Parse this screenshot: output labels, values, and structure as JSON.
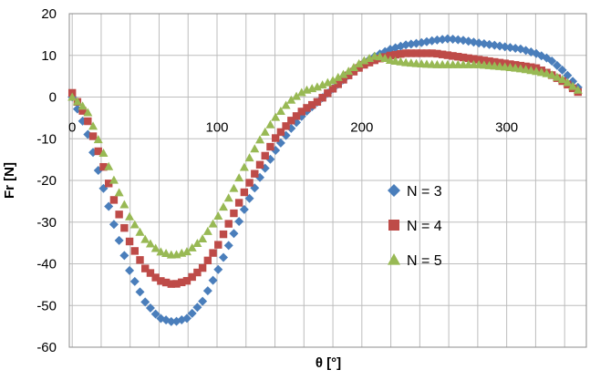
{
  "chart_data": {
    "type": "scatter",
    "title": "",
    "xlabel": "θ [°]",
    "ylabel": "Fr [N]",
    "xlim": [
      -2,
      355
    ],
    "ylim": [
      -60,
      20
    ],
    "x_ticks": [
      0,
      100,
      200,
      300
    ],
    "x_tick_labels": [
      "0",
      "100",
      "200",
      "300"
    ],
    "x_minor_step": 20,
    "y_ticks": [
      20,
      10,
      0,
      -10,
      -20,
      -30,
      -40,
      -50,
      -60
    ],
    "y_tick_labels": [
      "20",
      "10",
      "0",
      "-10",
      "-20",
      "-30",
      "-40",
      "-50",
      "-60"
    ],
    "grid": true,
    "legend_position": "center-right",
    "series": [
      {
        "name": "N = 3",
        "marker": "diamond",
        "color": "#4a7ebb",
        "x": [
          0,
          10,
          20,
          30,
          40,
          50,
          60,
          70,
          80,
          90,
          100,
          110,
          120,
          130,
          140,
          150,
          160,
          170,
          180,
          190,
          200,
          210,
          220,
          230,
          240,
          250,
          260,
          270,
          280,
          290,
          300,
          310,
          320,
          330,
          340,
          350
        ],
        "y": [
          0,
          -8,
          -20,
          -32,
          -42,
          -49,
          -53,
          -54,
          -53,
          -49,
          -42,
          -34,
          -26,
          -19,
          -13,
          -8,
          -4,
          -1,
          2,
          5,
          8,
          10,
          11.5,
          12.5,
          13,
          13.6,
          14,
          13.6,
          13,
          12.5,
          12,
          11.5,
          10.5,
          9,
          6,
          2
        ]
      },
      {
        "name": "N = 4",
        "marker": "square",
        "color": "#be4b48",
        "x": [
          0,
          10,
          20,
          30,
          40,
          50,
          60,
          70,
          80,
          90,
          100,
          110,
          120,
          130,
          140,
          150,
          160,
          170,
          180,
          190,
          200,
          210,
          220,
          230,
          240,
          250,
          260,
          270,
          280,
          290,
          300,
          310,
          320,
          330,
          340,
          350
        ],
        "y": [
          1,
          -5,
          -15,
          -26,
          -35,
          -41,
          -44,
          -45,
          -44,
          -41,
          -36,
          -29,
          -22,
          -16,
          -10,
          -6,
          -3,
          -1,
          2,
          5,
          7.5,
          9,
          10,
          10.5,
          10.5,
          10.5,
          10,
          9.5,
          9,
          8.5,
          8,
          7.5,
          7,
          5.5,
          3.5,
          1
        ]
      },
      {
        "name": "N = 5",
        "marker": "triangle",
        "color": "#98b954",
        "x": [
          0,
          10,
          20,
          30,
          40,
          50,
          60,
          70,
          80,
          90,
          100,
          110,
          120,
          130,
          140,
          150,
          160,
          170,
          180,
          190,
          200,
          210,
          220,
          230,
          240,
          250,
          260,
          270,
          280,
          290,
          300,
          310,
          320,
          330,
          340,
          350
        ],
        "y": [
          0,
          -3,
          -12,
          -21,
          -29,
          -34,
          -37,
          -38,
          -37,
          -34,
          -29,
          -23,
          -16,
          -10,
          -5,
          -1,
          1.5,
          2.5,
          4,
          6,
          8.5,
          10,
          8.8,
          8.3,
          8,
          7.8,
          7.8,
          7.8,
          7.8,
          7.5,
          7.2,
          6.8,
          6.2,
          5.5,
          4,
          1.5
        ]
      }
    ]
  }
}
